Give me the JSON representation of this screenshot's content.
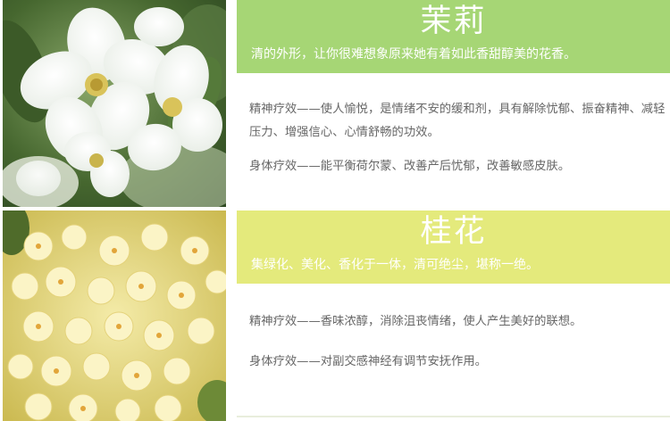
{
  "jasmine": {
    "title": "茉莉",
    "subtitle": "清的外形，让你很难想象原来她有着如此香甜醇美的花香。",
    "effect_mental": "精神疗效——使人愉悦，是情绪不安的缓和剂，具有解除忧郁、振奋精神、减轻压力、增强信心、心情舒畅的功效。",
    "effect_body": "身体疗效——能平衡荷尔蒙、改善产后忧郁，改善敏感皮肤。",
    "banner_color": "#a6d675"
  },
  "osmanthus": {
    "title": "桂花",
    "subtitle": "集绿化、美化、香化于一体，清可绝尘，堪称一绝。",
    "effect_mental": "精神疗效——香味浓醇，消除沮丧情绪，使人产生美好的联想。",
    "effect_body": "身体疗效——对副交感神经有调节安抚作用。",
    "banner_color": "#e4ea7c"
  }
}
